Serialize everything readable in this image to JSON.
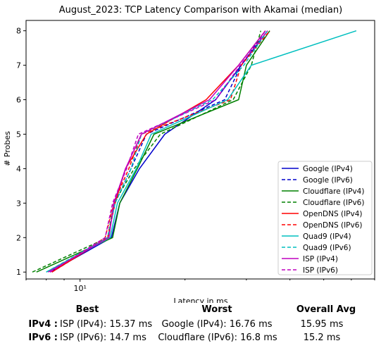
{
  "chart_data": {
    "type": "line",
    "title": "August_2023: TCP Latency Comparison with Akamai (median)",
    "xlabel": "Latency in ms",
    "ylabel": "# Probes",
    "xscale": "log",
    "xlim": [
      7.0,
      70.0
    ],
    "ylim": [
      0.8,
      8.3
    ],
    "xticks": [
      {
        "value": 10,
        "label": "10¹"
      }
    ],
    "yticks": [
      1,
      2,
      3,
      4,
      5,
      6,
      7,
      8
    ],
    "legend": "lower-right",
    "grid": false,
    "series": [
      {
        "name": "Google (IPv4)",
        "color": "#0000cc",
        "dash": "solid",
        "x": [
          8.2,
          12.3,
          13.0,
          14.8,
          17.5,
          24.5,
          29.0,
          34.5
        ],
        "y": [
          1,
          2,
          3,
          4,
          5,
          6,
          7,
          8
        ]
      },
      {
        "name": "Google (IPv6)",
        "color": "#0000cc",
        "dash": "dashed",
        "x": [
          8.3,
          12.0,
          12.6,
          14.0,
          15.5,
          26.0,
          29.0,
          34.0
        ],
        "y": [
          1,
          2,
          3,
          4,
          5,
          6,
          7,
          8
        ]
      },
      {
        "name": "Cloudflare (IPv4)",
        "color": "#008000",
        "dash": "solid",
        "x": [
          7.5,
          12.4,
          13.0,
          14.6,
          16.3,
          28.5,
          30.0,
          35.0
        ],
        "y": [
          1,
          2,
          3,
          4,
          5,
          6,
          7,
          8
        ]
      },
      {
        "name": "Cloudflare (IPv6)",
        "color": "#008000",
        "dash": "dashed",
        "x": [
          7.3,
          12.0,
          12.5,
          14.3,
          17.0,
          27.5,
          31.0,
          33.0
        ],
        "y": [
          1,
          2,
          3,
          4,
          5,
          6,
          7,
          8
        ]
      },
      {
        "name": "OpenDNS (IPv4)",
        "color": "#ff0000",
        "dash": "solid",
        "x": [
          8.3,
          12.0,
          12.6,
          13.5,
          15.5,
          23.0,
          28.5,
          34.0
        ],
        "y": [
          1,
          2,
          3,
          4,
          5,
          6,
          7,
          8
        ]
      },
      {
        "name": "OpenDNS (IPv6)",
        "color": "#ff0000",
        "dash": "dashed",
        "x": [
          8.3,
          11.8,
          12.5,
          13.8,
          15.0,
          27.0,
          29.0,
          35.0
        ],
        "y": [
          1,
          2,
          3,
          4,
          5,
          6,
          7,
          8
        ]
      },
      {
        "name": "Quad9 (IPv4)",
        "color": "#00bfbf",
        "dash": "solid",
        "x": [
          8.0,
          12.2,
          12.8,
          14.5,
          16.0,
          26.5,
          31.0,
          62.0
        ],
        "y": [
          1,
          2,
          3,
          4,
          5,
          6,
          7,
          8
        ]
      },
      {
        "name": "Quad9 (IPv6)",
        "color": "#00bfbf",
        "dash": "dashed",
        "x": [
          8.0,
          12.0,
          12.6,
          14.0,
          15.0,
          24.0,
          29.5,
          34.5
        ],
        "y": [
          1,
          2,
          3,
          4,
          5,
          6,
          7,
          8
        ]
      },
      {
        "name": "ISP (IPv4)",
        "color": "#bf00bf",
        "dash": "solid",
        "x": [
          8.1,
          12.1,
          12.5,
          13.5,
          15.0,
          23.5,
          28.5,
          34.0
        ],
        "y": [
          1,
          2,
          3,
          4,
          5,
          6,
          7,
          8
        ]
      },
      {
        "name": "ISP (IPv6)",
        "color": "#bf00bf",
        "dash": "dashed",
        "x": [
          8.2,
          11.8,
          12.4,
          13.6,
          14.7,
          24.5,
          28.8,
          34.5
        ],
        "y": [
          1,
          2,
          3,
          4,
          5,
          6,
          7,
          8
        ]
      }
    ]
  },
  "summary": {
    "headers": {
      "best": "Best",
      "worst": "Worst",
      "avg": "Overall Avg"
    },
    "rows": [
      {
        "label": "IPv4 :",
        "best": "ISP (IPv4): 15.37 ms",
        "worst": "Google (IPv4): 16.76 ms",
        "avg": "15.95 ms"
      },
      {
        "label": "IPv6 :",
        "best": "ISP (IPv6): 14.7 ms",
        "worst": "Cloudflare (IPv6): 16.8 ms",
        "avg": "15.2 ms"
      }
    ]
  }
}
